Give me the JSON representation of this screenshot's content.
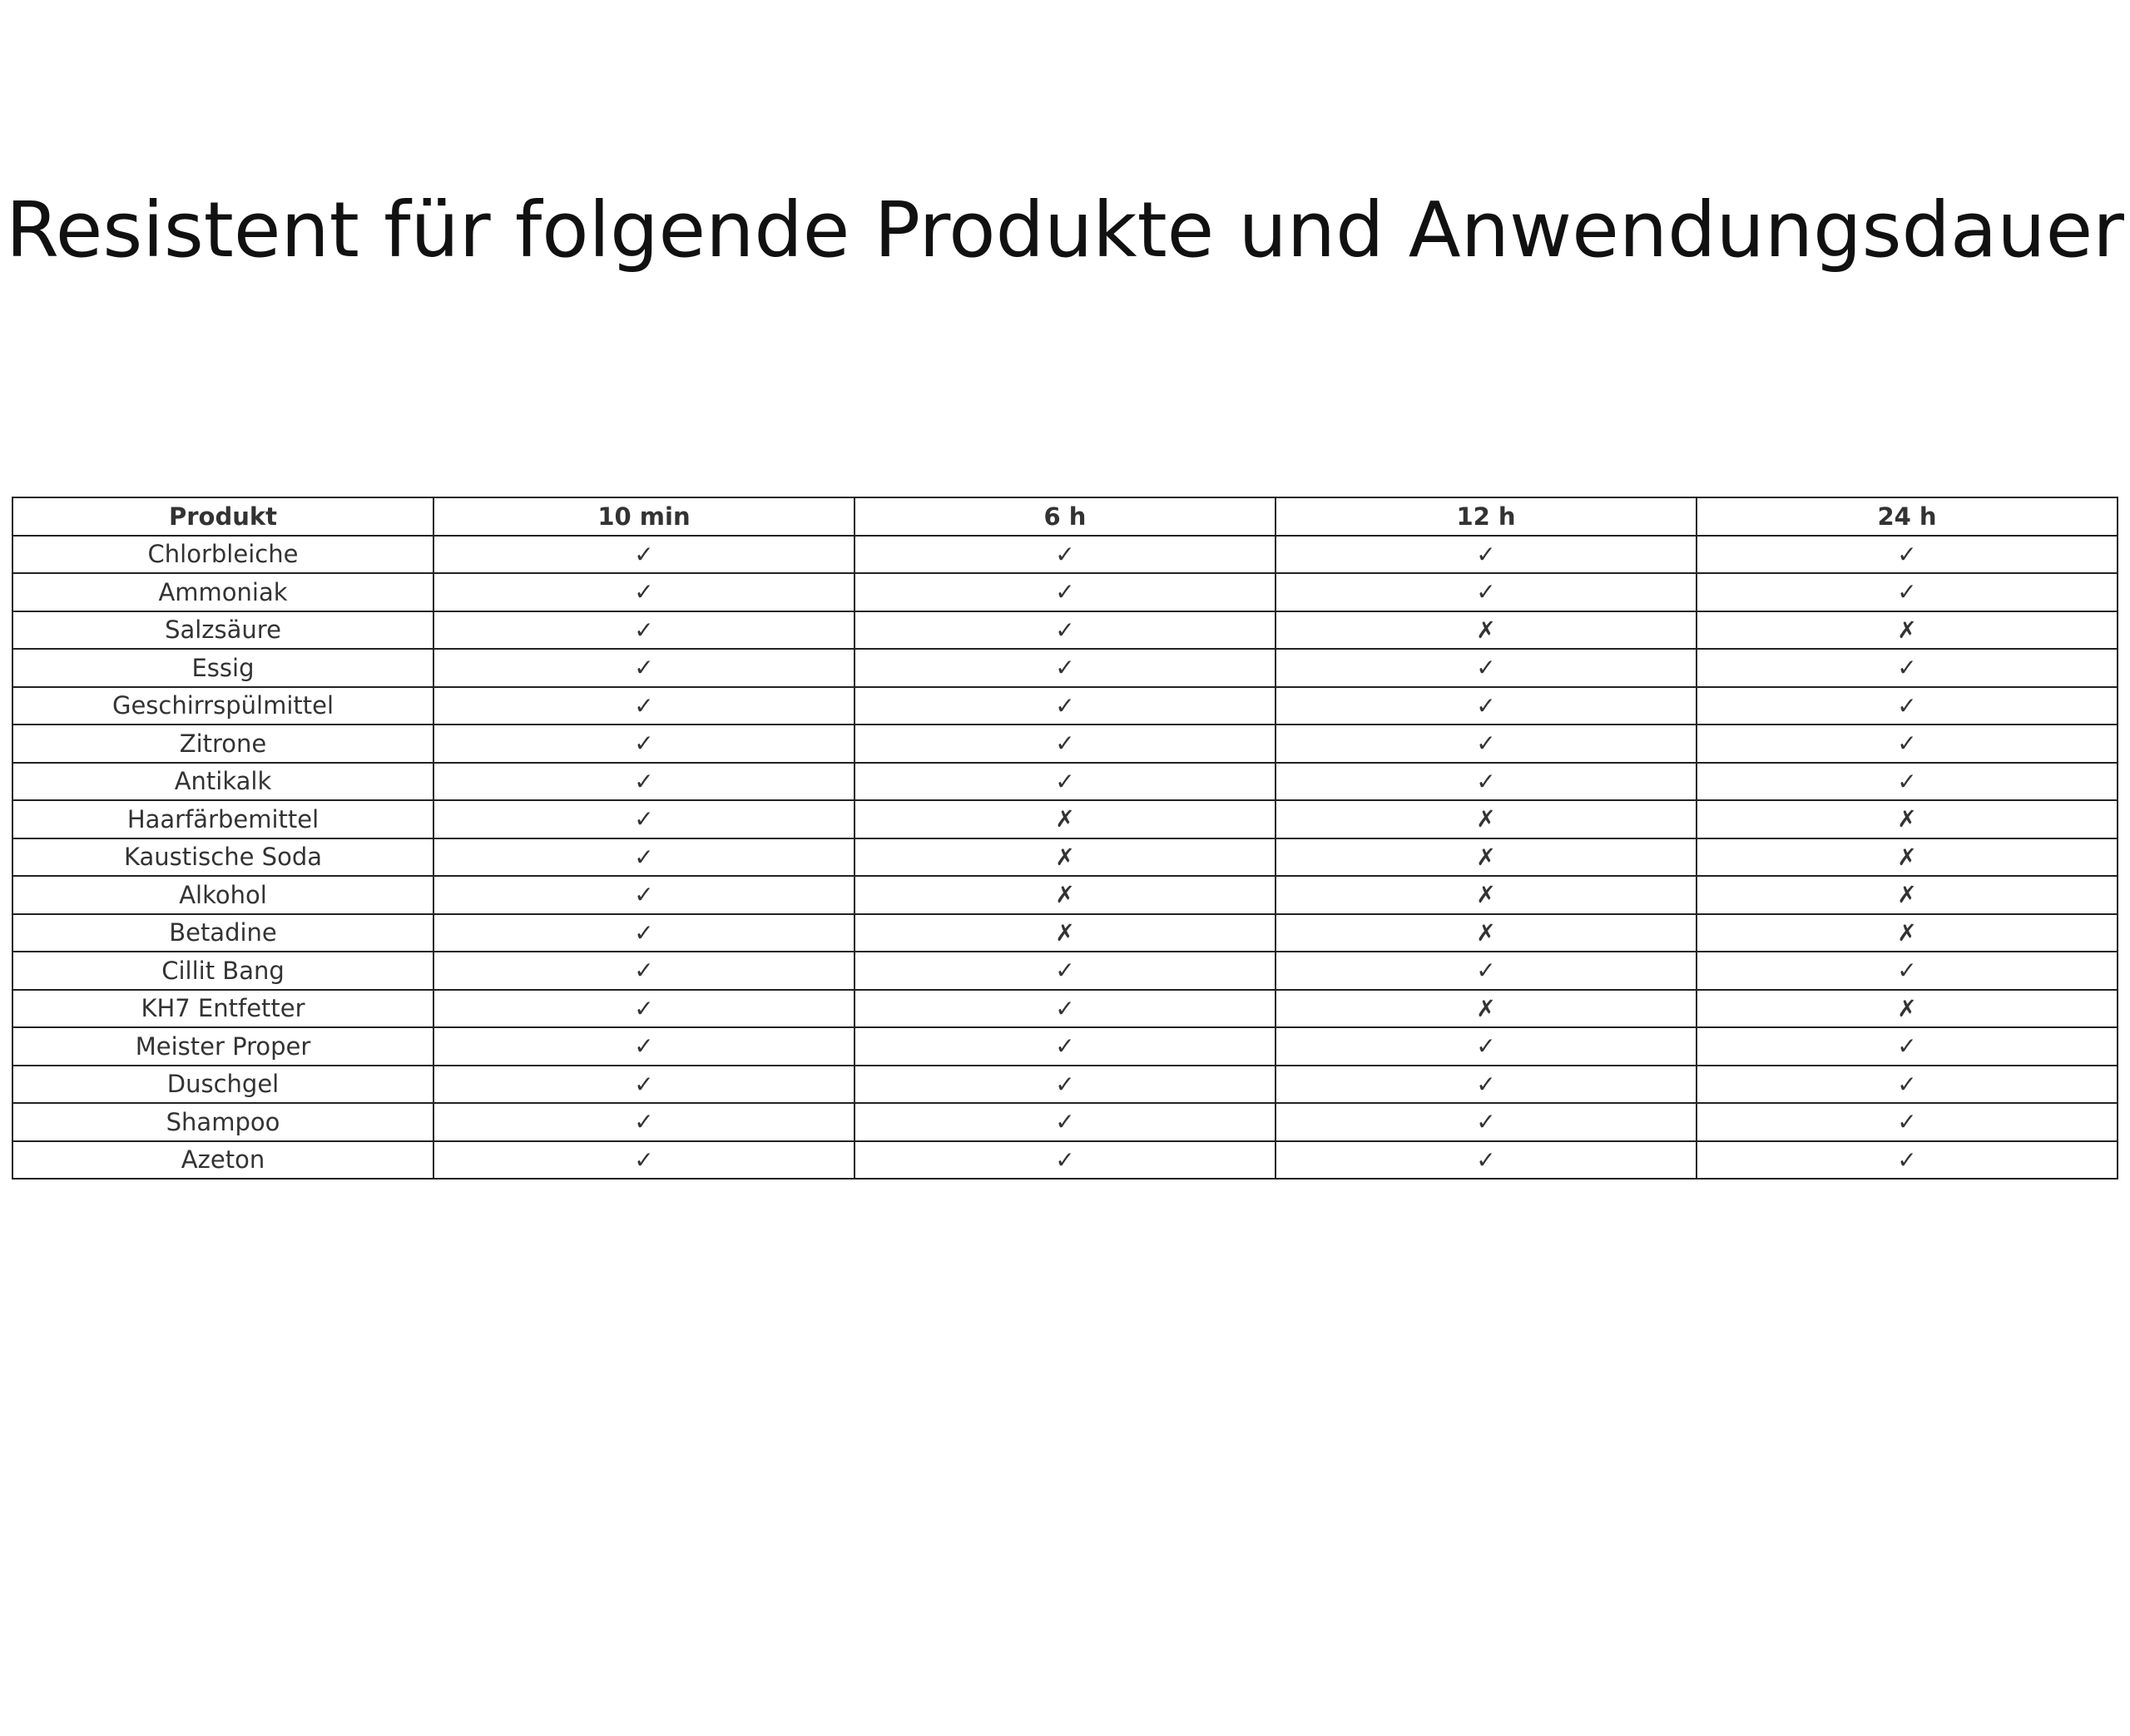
{
  "title": "Resistent für folgende Produkte und Anwendungsdauer",
  "table": {
    "headers": [
      "Produkt",
      "10 min",
      "6 h",
      "12 h",
      "24 h"
    ],
    "rows": [
      [
        "Chlorbleiche",
        "✓",
        "✓",
        "✓",
        "✓"
      ],
      [
        "Ammoniak",
        "✓",
        "✓",
        "✓",
        "✓"
      ],
      [
        "Salzsäure",
        "✓",
        "✓",
        "✗",
        "✗"
      ],
      [
        "Essig",
        "✓",
        "✓",
        "✓",
        "✓"
      ],
      [
        "Geschirrspülmittel",
        "✓",
        "✓",
        "✓",
        "✓"
      ],
      [
        "Zitrone",
        "✓",
        "✓",
        "✓",
        "✓"
      ],
      [
        "Antikalk",
        "✓",
        "✓",
        "✓",
        "✓"
      ],
      [
        "Haarfärbemittel",
        "✓",
        "✗",
        "✗",
        "✗"
      ],
      [
        "Kaustische Soda",
        "✓",
        "✗",
        "✗",
        "✗"
      ],
      [
        "Alkohol",
        "✓",
        "✗",
        "✗",
        "✗"
      ],
      [
        "Betadine",
        "✓",
        "✗",
        "✗",
        "✗"
      ],
      [
        "Cillit Bang",
        "✓",
        "✓",
        "✓",
        "✓"
      ],
      [
        "KH7 Entfetter",
        "✓",
        "✓",
        "✗",
        "✗"
      ],
      [
        "Meister Proper",
        "✓",
        "✓",
        "✓",
        "✓"
      ],
      [
        "Duschgel",
        "✓",
        "✓",
        "✓",
        "✓"
      ],
      [
        "Shampoo",
        "✓",
        "✓",
        "✓",
        "✓"
      ],
      [
        "Azeton",
        "✓",
        "✓",
        "✓",
        "✓"
      ]
    ]
  }
}
